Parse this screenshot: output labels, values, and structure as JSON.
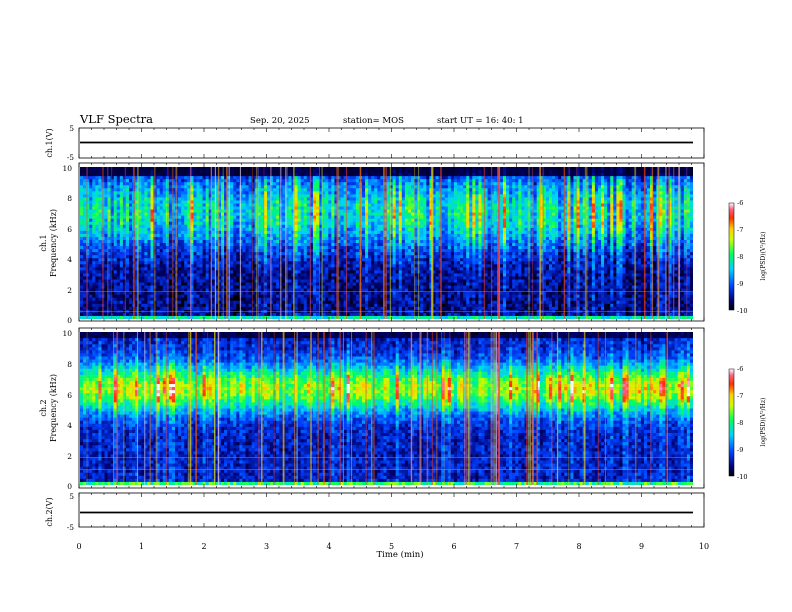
{
  "header": {
    "title": "VLF Spectra",
    "date": "Sep. 20, 2025",
    "station": "station= MOS",
    "start": "start  UT =   16: 40: 1"
  },
  "chart_data": [
    {
      "type": "line",
      "name": "ch1-waveform",
      "ylabel": "ch.1(V)",
      "ylim": [
        -5,
        5
      ],
      "yticks": [
        "5",
        "-5"
      ],
      "note": "flat trace near -1 V"
    },
    {
      "type": "heatmap",
      "name": "ch1-spectrogram",
      "ylabel": "ch.1\nFrequency (kHz)",
      "ylabel_lines": [
        "ch.1",
        "Frequency (kHz)"
      ],
      "ylim": [
        0,
        10
      ],
      "yticks": [
        "0",
        "2",
        "4",
        "6",
        "8",
        "10"
      ],
      "colorbar": {
        "label": "log(PSD)(V²/Hz)",
        "range": [
          -10,
          -6
        ],
        "ticks": [
          "-6",
          "-7",
          "-8",
          "-9",
          "-10"
        ]
      }
    },
    {
      "type": "heatmap",
      "name": "ch2-spectrogram",
      "ylabel_lines": [
        "ch.2",
        "Frequency (kHz)"
      ],
      "ylim": [
        0,
        10
      ],
      "yticks": [
        "0",
        "2",
        "4",
        "6",
        "8",
        "10"
      ],
      "colorbar": {
        "label": "log(PSD)(V²/Hz)",
        "range": [
          -10,
          -6
        ],
        "ticks": [
          "-6",
          "-7",
          "-8",
          "-9",
          "-10"
        ]
      }
    },
    {
      "type": "line",
      "name": "ch2-waveform",
      "ylabel": "ch.2(V)",
      "ylim": [
        -5,
        5
      ],
      "yticks": [
        "5",
        "-5"
      ]
    }
  ],
  "xaxis": {
    "label": "Time  (min)",
    "range": [
      0,
      10
    ],
    "ticks": [
      "0",
      "1",
      "2",
      "3",
      "4",
      "5",
      "6",
      "7",
      "8",
      "9",
      "10"
    ]
  }
}
